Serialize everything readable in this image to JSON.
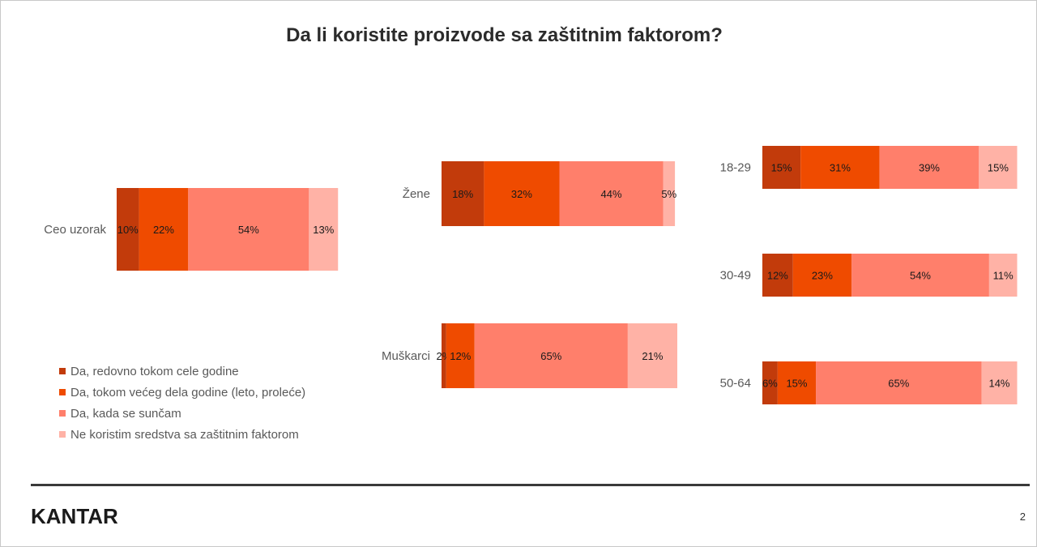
{
  "title": "Da li koristite proizvode sa zaštitnim faktorom?",
  "colors": [
    "#c23b0b",
    "#ef4b00",
    "#ff7f6b",
    "#ffb2a6"
  ],
  "legend": [
    "Da, redovno tokom cele godine",
    "Da, tokom većeg dela godine (leto, proleće)",
    "Da, kada se sunčam",
    "Ne koristim sredstva sa zaštitnim faktorom"
  ],
  "chart_data": [
    {
      "type": "bar",
      "orientation": "horizontal",
      "stacked": true,
      "category": "Ceo uzorak",
      "values": [
        10,
        22,
        54,
        13
      ],
      "labels": [
        "10%",
        "22%",
        "54%",
        "13%"
      ]
    },
    {
      "type": "bar",
      "orientation": "horizontal",
      "stacked": true,
      "categories": [
        "Žene",
        "Muškarci"
      ],
      "series": [
        {
          "name": "Da, redovno tokom cele godine",
          "values": [
            18,
            2
          ],
          "labels": [
            "18%",
            "2%"
          ]
        },
        {
          "name": "Da, tokom većeg dela godine (leto, proleće)",
          "values": [
            32,
            12
          ],
          "labels": [
            "32%",
            "12%"
          ]
        },
        {
          "name": "Da, kada se sunčam",
          "values": [
            44,
            65
          ],
          "labels": [
            "44%",
            "65%"
          ]
        },
        {
          "name": "Ne koristim sredstva sa zaštitnim faktorom",
          "values": [
            5,
            21
          ],
          "labels": [
            "5%",
            "21%"
          ]
        }
      ]
    },
    {
      "type": "bar",
      "orientation": "horizontal",
      "stacked": true,
      "categories": [
        "18-29",
        "30-49",
        "50-64"
      ],
      "series": [
        {
          "name": "Da, redovno tokom cele godine",
          "values": [
            15,
            12,
            6
          ],
          "labels": [
            "15%",
            "12%",
            "6%"
          ]
        },
        {
          "name": "Da, tokom većeg dela godine (leto, proleće)",
          "values": [
            31,
            23,
            15
          ],
          "labels": [
            "31%",
            "23%",
            "15%"
          ]
        },
        {
          "name": "Da, kada se sunčam",
          "values": [
            39,
            54,
            65
          ],
          "labels": [
            "39%",
            "54%",
            "65%"
          ]
        },
        {
          "name": "Ne koristim sredstva sa zaštitnim faktorom",
          "values": [
            15,
            11,
            14
          ],
          "labels": [
            "15%",
            "11%",
            "14%"
          ]
        }
      ]
    }
  ],
  "footer": {
    "logo": "KANTAR",
    "page_number": "2"
  }
}
